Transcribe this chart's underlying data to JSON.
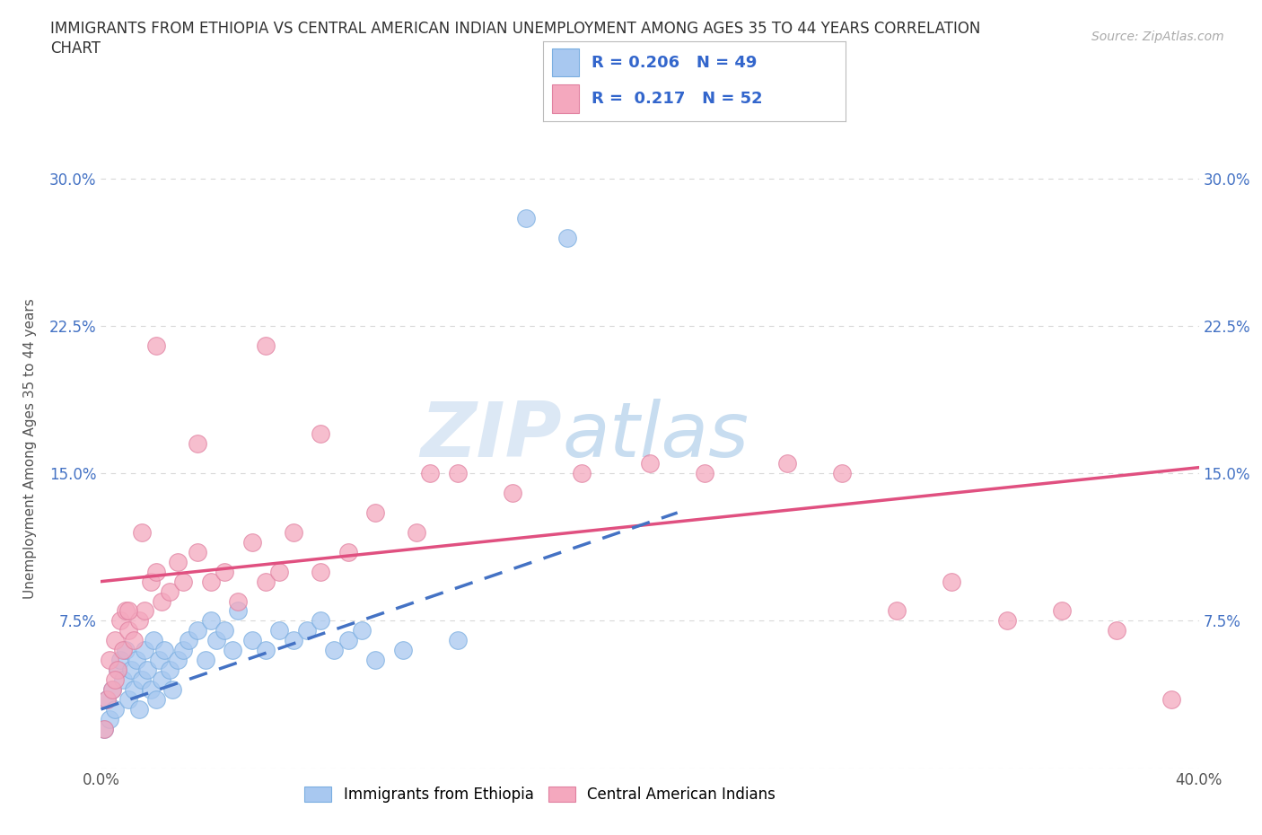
{
  "title": "IMMIGRANTS FROM ETHIOPIA VS CENTRAL AMERICAN INDIAN UNEMPLOYMENT AMONG AGES 35 TO 44 YEARS CORRELATION\nCHART",
  "source": "Source: ZipAtlas.com",
  "ylabel": "Unemployment Among Ages 35 to 44 years",
  "xlim": [
    0.0,
    0.4
  ],
  "ylim": [
    0.0,
    0.325
  ],
  "xticks": [
    0.0,
    0.1,
    0.2,
    0.3,
    0.4
  ],
  "xticklabels": [
    "0.0%",
    "",
    "",
    "",
    "40.0%"
  ],
  "yticks": [
    0.0,
    0.075,
    0.15,
    0.225,
    0.3
  ],
  "yticklabels": [
    "",
    "7.5%",
    "15.0%",
    "22.5%",
    "30.0%"
  ],
  "r_ethiopia": 0.206,
  "n_ethiopia": 49,
  "r_central": 0.217,
  "n_central": 52,
  "scatter_color_ethiopia": "#a8c8f0",
  "scatter_edge_ethiopia": "#7aaee0",
  "scatter_color_central": "#f4a8be",
  "scatter_edge_central": "#e080a0",
  "line_color_ethiopia": "#4472c4",
  "line_color_central": "#e05080",
  "watermark_color": "#dce8f5",
  "background_color": "#ffffff",
  "grid_color": "#d8d8d8",
  "title_color": "#333333",
  "source_color": "#aaaaaa",
  "tick_color": "#4472c4",
  "ethiopia_x": [
    0.001,
    0.002,
    0.003,
    0.004,
    0.005,
    0.006,
    0.007,
    0.008,
    0.009,
    0.01,
    0.011,
    0.012,
    0.013,
    0.014,
    0.015,
    0.016,
    0.017,
    0.018,
    0.019,
    0.02,
    0.021,
    0.022,
    0.023,
    0.025,
    0.026,
    0.028,
    0.03,
    0.032,
    0.035,
    0.038,
    0.04,
    0.042,
    0.045,
    0.048,
    0.05,
    0.055,
    0.06,
    0.065,
    0.07,
    0.075,
    0.08,
    0.085,
    0.09,
    0.095,
    0.1,
    0.11,
    0.13,
    0.155,
    0.17
  ],
  "ethiopia_y": [
    0.02,
    0.035,
    0.025,
    0.04,
    0.03,
    0.05,
    0.055,
    0.045,
    0.06,
    0.035,
    0.05,
    0.04,
    0.055,
    0.03,
    0.045,
    0.06,
    0.05,
    0.04,
    0.065,
    0.035,
    0.055,
    0.045,
    0.06,
    0.05,
    0.04,
    0.055,
    0.06,
    0.065,
    0.07,
    0.055,
    0.075,
    0.065,
    0.07,
    0.06,
    0.08,
    0.065,
    0.06,
    0.07,
    0.065,
    0.07,
    0.075,
    0.06,
    0.065,
    0.07,
    0.055,
    0.06,
    0.065,
    0.28,
    0.27
  ],
  "central_x": [
    0.001,
    0.002,
    0.003,
    0.004,
    0.005,
    0.006,
    0.007,
    0.008,
    0.009,
    0.01,
    0.012,
    0.014,
    0.016,
    0.018,
    0.02,
    0.022,
    0.025,
    0.028,
    0.03,
    0.035,
    0.04,
    0.045,
    0.05,
    0.055,
    0.06,
    0.065,
    0.07,
    0.08,
    0.09,
    0.1,
    0.115,
    0.13,
    0.15,
    0.175,
    0.2,
    0.22,
    0.25,
    0.27,
    0.29,
    0.31,
    0.33,
    0.35,
    0.37,
    0.39,
    0.005,
    0.01,
    0.015,
    0.02,
    0.035,
    0.06,
    0.08,
    0.12
  ],
  "central_y": [
    0.02,
    0.035,
    0.055,
    0.04,
    0.065,
    0.05,
    0.075,
    0.06,
    0.08,
    0.07,
    0.065,
    0.075,
    0.08,
    0.095,
    0.1,
    0.085,
    0.09,
    0.105,
    0.095,
    0.11,
    0.095,
    0.1,
    0.085,
    0.115,
    0.095,
    0.1,
    0.12,
    0.1,
    0.11,
    0.13,
    0.12,
    0.15,
    0.14,
    0.15,
    0.155,
    0.15,
    0.155,
    0.15,
    0.08,
    0.095,
    0.075,
    0.08,
    0.07,
    0.035,
    0.045,
    0.08,
    0.12,
    0.215,
    0.165,
    0.215,
    0.17,
    0.15
  ],
  "eth_line_x0": 0.0,
  "eth_line_y0": 0.03,
  "eth_line_x1": 0.21,
  "eth_line_y1": 0.13,
  "cen_line_x0": 0.0,
  "cen_line_y0": 0.095,
  "cen_line_x1": 0.4,
  "cen_line_y1": 0.153
}
